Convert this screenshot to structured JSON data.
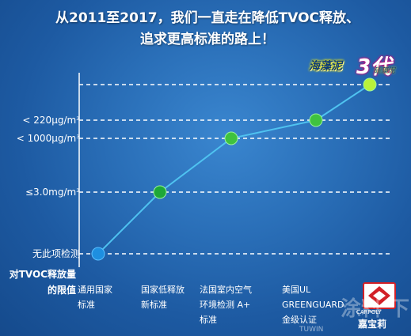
{
  "title_lines": [
    "从2011至2017，我们一直走在降低TVOC释放、",
    "追求更高标准的路上！"
  ],
  "logo": {
    "text": "海藻泥",
    "gen": "3代",
    "sub": "硅藻泥"
  },
  "chart_data": {
    "type": "line",
    "title": "从2011至2017，我们一直走在降低TVOC释放、追求更高标准的路上！",
    "ylabel": "对TVOC释放量的限值",
    "y_tick_labels": [
      "无此项检测",
      "≤3.0mg/m³",
      "< 1000μg/m³",
      "< 220μg/m³"
    ],
    "categories": [
      "通用国家\n标准",
      "国家低释放\n新标准",
      "法国室内空气\n环境检测 A+\n标准",
      "美国UL\nGREENGUARD\n金级认证",
      "嘉宝莉"
    ],
    "values": [
      0,
      1,
      2,
      3,
      4
    ],
    "grid": true,
    "color": "#3fc23f"
  },
  "brand": {
    "en": "CARPOLY",
    "cn": "嘉宝莉"
  },
  "watermark": "涂料 下",
  "watermark_sub": "TUWIN"
}
